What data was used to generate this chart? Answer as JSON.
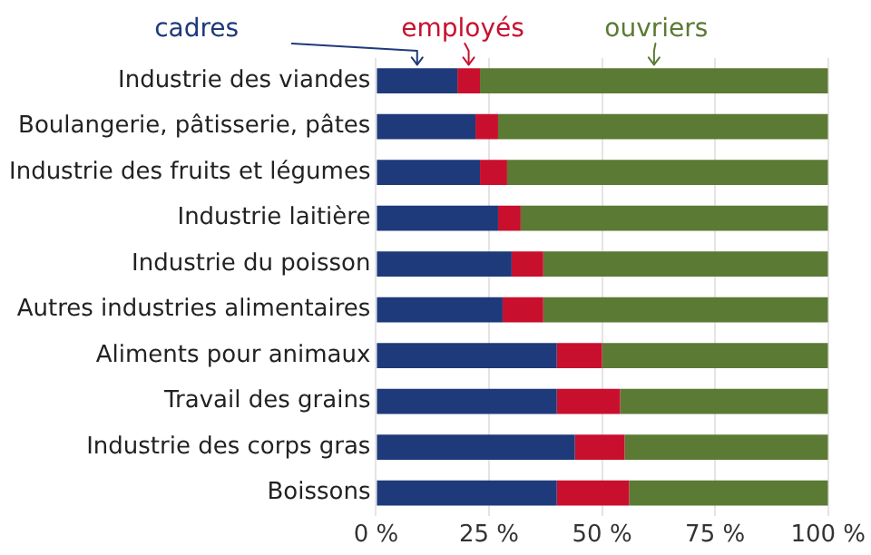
{
  "chart_data": {
    "type": "bar",
    "orientation": "horizontal",
    "stacked": true,
    "legend": "top",
    "grid": "x",
    "categories": [
      "Industrie des viandes",
      "Boulangerie, pâtisserie, pâtes",
      "Industrie des fruits et légumes",
      "Industrie laitière",
      "Industrie du poisson",
      "Autres industries alimentaires",
      "Aliments pour animaux",
      "Travail des grains",
      "Industrie des corps gras",
      "Boissons"
    ],
    "series": [
      {
        "name": "cadres",
        "color": "#1f3a7a",
        "values": [
          18,
          22,
          23,
          27,
          30,
          28,
          40,
          40,
          44,
          40
        ]
      },
      {
        "name": "employés",
        "color": "#c8102e",
        "values": [
          5,
          5,
          6,
          5,
          7,
          9,
          10,
          14,
          11,
          16
        ]
      },
      {
        "name": "ouvriers",
        "color": "#5b7a34",
        "values": [
          77,
          73,
          71,
          68,
          63,
          63,
          50,
          46,
          45,
          44
        ]
      }
    ],
    "xlim": [
      0,
      100
    ],
    "xticks": [
      {
        "value": 0,
        "label": "0 %"
      },
      {
        "value": 25,
        "label": "25 %"
      },
      {
        "value": 50,
        "label": "50 %"
      },
      {
        "value": 75,
        "label": "75 %"
      },
      {
        "value": 100,
        "label": "100 %"
      }
    ]
  }
}
